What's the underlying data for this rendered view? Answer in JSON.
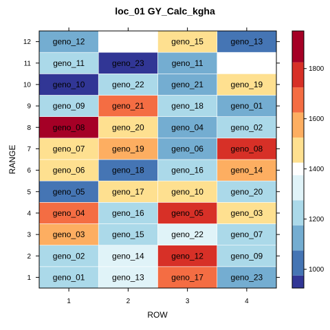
{
  "chart_data": {
    "type": "heatmap",
    "title": "loc_01 GY_Calc_kgha",
    "xlabel": "ROW",
    "ylabel": "RANGE",
    "x_categories": [
      "1",
      "2",
      "3",
      "4"
    ],
    "y_categories": [
      "1",
      "2",
      "3",
      "4",
      "5",
      "6",
      "7",
      "8",
      "9",
      "10",
      "11",
      "12"
    ],
    "grid": false,
    "legend": "right colorbar",
    "colorbar": {
      "min": 925,
      "max": 1950,
      "ticks": [
        1000,
        1200,
        1400,
        1600,
        1800
      ],
      "bins": [
        {
          "from": 925,
          "to": 975,
          "color": "#313695"
        },
        {
          "from": 975,
          "to": 1075,
          "color": "#4575b4"
        },
        {
          "from": 1075,
          "to": 1175,
          "color": "#74add1"
        },
        {
          "from": 1175,
          "to": 1275,
          "color": "#abd9e9"
        },
        {
          "from": 1275,
          "to": 1375,
          "color": "#e0f3f8"
        },
        {
          "from": 1375,
          "to": 1425,
          "color": "#ffffff"
        },
        {
          "from": 1425,
          "to": 1525,
          "color": "#fee090"
        },
        {
          "from": 1525,
          "to": 1625,
          "color": "#fdae61"
        },
        {
          "from": 1625,
          "to": 1725,
          "color": "#f46d43"
        },
        {
          "from": 1725,
          "to": 1825,
          "color": "#d73027"
        },
        {
          "from": 1825,
          "to": 1950,
          "color": "#a50026"
        }
      ]
    },
    "cells": [
      {
        "row": 1,
        "range": 1,
        "label": "geno_01",
        "value": 1250
      },
      {
        "row": 2,
        "range": 1,
        "label": "geno_13",
        "value": 1320
      },
      {
        "row": 3,
        "range": 1,
        "label": "geno_17",
        "value": 1680
      },
      {
        "row": 4,
        "range": 1,
        "label": "geno_23",
        "value": 1130
      },
      {
        "row": 1,
        "range": 2,
        "label": "geno_02",
        "value": 1250
      },
      {
        "row": 2,
        "range": 2,
        "label": "geno_14",
        "value": 1320
      },
      {
        "row": 3,
        "range": 2,
        "label": "geno_12",
        "value": 1780
      },
      {
        "row": 4,
        "range": 2,
        "label": "geno_09",
        "value": 1250
      },
      {
        "row": 1,
        "range": 3,
        "label": "geno_03",
        "value": 1580
      },
      {
        "row": 2,
        "range": 3,
        "label": "geno_15",
        "value": 1250
      },
      {
        "row": 3,
        "range": 3,
        "label": "geno_22",
        "value": 1320
      },
      {
        "row": 4,
        "range": 3,
        "label": "geno_07",
        "value": 1250
      },
      {
        "row": 1,
        "range": 4,
        "label": "geno_04",
        "value": 1680
      },
      {
        "row": 2,
        "range": 4,
        "label": "geno_16",
        "value": 1250
      },
      {
        "row": 3,
        "range": 4,
        "label": "geno_05",
        "value": 1780
      },
      {
        "row": 4,
        "range": 4,
        "label": "geno_03",
        "value": 1480
      },
      {
        "row": 1,
        "range": 5,
        "label": "geno_05",
        "value": 1030
      },
      {
        "row": 2,
        "range": 5,
        "label": "geno_17",
        "value": 1480
      },
      {
        "row": 3,
        "range": 5,
        "label": "geno_10",
        "value": 1480
      },
      {
        "row": 4,
        "range": 5,
        "label": "geno_20",
        "value": 1250
      },
      {
        "row": 1,
        "range": 6,
        "label": "geno_06",
        "value": 1480
      },
      {
        "row": 2,
        "range": 6,
        "label": "geno_18",
        "value": 1030
      },
      {
        "row": 3,
        "range": 6,
        "label": "geno_16",
        "value": 1250
      },
      {
        "row": 4,
        "range": 6,
        "label": "geno_14",
        "value": 1580
      },
      {
        "row": 1,
        "range": 7,
        "label": "geno_07",
        "value": 1480
      },
      {
        "row": 2,
        "range": 7,
        "label": "geno_19",
        "value": 1580
      },
      {
        "row": 3,
        "range": 7,
        "label": "geno_06",
        "value": 1130
      },
      {
        "row": 4,
        "range": 7,
        "label": "geno_08",
        "value": 1780
      },
      {
        "row": 1,
        "range": 8,
        "label": "geno_08",
        "value": 1890
      },
      {
        "row": 2,
        "range": 8,
        "label": "geno_20",
        "value": 1480
      },
      {
        "row": 3,
        "range": 8,
        "label": "geno_04",
        "value": 1130
      },
      {
        "row": 4,
        "range": 8,
        "label": "geno_02",
        "value": 1250
      },
      {
        "row": 1,
        "range": 9,
        "label": "geno_09",
        "value": 1250
      },
      {
        "row": 2,
        "range": 9,
        "label": "geno_21",
        "value": 1680
      },
      {
        "row": 3,
        "range": 9,
        "label": "geno_18",
        "value": 1250
      },
      {
        "row": 4,
        "range": 9,
        "label": "geno_01",
        "value": 1130
      },
      {
        "row": 1,
        "range": 10,
        "label": "geno_10",
        "value": 950
      },
      {
        "row": 2,
        "range": 10,
        "label": "geno_22",
        "value": 1250
      },
      {
        "row": 3,
        "range": 10,
        "label": "geno_21",
        "value": 1130
      },
      {
        "row": 4,
        "range": 10,
        "label": "geno_19",
        "value": 1480
      },
      {
        "row": 1,
        "range": 11,
        "label": "geno_11",
        "value": 1250
      },
      {
        "row": 2,
        "range": 11,
        "label": "geno_23",
        "value": 950
      },
      {
        "row": 3,
        "range": 11,
        "label": "geno_11",
        "value": 1130
      },
      {
        "row": 1,
        "range": 12,
        "label": "geno_12",
        "value": 1130
      },
      {
        "row": 3,
        "range": 12,
        "label": "geno_15",
        "value": 1480
      },
      {
        "row": 4,
        "range": 12,
        "label": "geno_13",
        "value": 1030
      }
    ]
  }
}
